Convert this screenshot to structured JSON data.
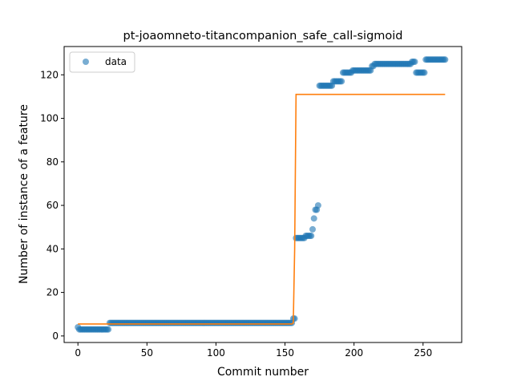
{
  "chart_data": {
    "type": "scatter",
    "title": "pt-joaomneto-titancompanion_safe_call-sigmoid",
    "xlabel": "Commit number",
    "ylabel": "Number of instance of a feature",
    "xlim": [
      -10,
      278
    ],
    "ylim": [
      -3,
      133
    ],
    "xticks": [
      0,
      50,
      100,
      150,
      200,
      250
    ],
    "yticks": [
      0,
      20,
      40,
      60,
      80,
      100,
      120
    ],
    "grid": false,
    "legend_position": "top-left",
    "legend": [
      "data"
    ],
    "colors": {
      "data": "#1f77b4",
      "fit": "#ff7f0e"
    },
    "series": [
      {
        "name": "data",
        "kind": "scatter",
        "segments": [
          {
            "x_from": 0,
            "x_to": 0,
            "y": 4
          },
          {
            "x_from": 1,
            "x_to": 22,
            "y": 3
          },
          {
            "x_from": 23,
            "x_to": 155,
            "y": 6
          },
          {
            "x_from": 156,
            "x_to": 157,
            "y": 8
          },
          {
            "x_from": 158,
            "x_to": 164,
            "y": 45
          },
          {
            "x_from": 165,
            "x_to": 169,
            "y": 46
          },
          {
            "x_from": 170,
            "x_to": 170,
            "y": 49
          },
          {
            "x_from": 171,
            "x_to": 171,
            "y": 54
          },
          {
            "x_from": 172,
            "x_to": 173,
            "y": 58
          },
          {
            "x_from": 174,
            "x_to": 174,
            "y": 60
          },
          {
            "x_from": 175,
            "x_to": 184,
            "y": 115
          },
          {
            "x_from": 185,
            "x_to": 191,
            "y": 117
          },
          {
            "x_from": 192,
            "x_to": 198,
            "y": 121
          },
          {
            "x_from": 199,
            "x_to": 212,
            "y": 122
          },
          {
            "x_from": 213,
            "x_to": 214,
            "y": 124
          },
          {
            "x_from": 215,
            "x_to": 241,
            "y": 125
          },
          {
            "x_from": 242,
            "x_to": 244,
            "y": 126
          },
          {
            "x_from": 245,
            "x_to": 251,
            "y": 121
          },
          {
            "x_from": 252,
            "x_to": 266,
            "y": 127
          }
        ]
      },
      {
        "name": "",
        "kind": "line",
        "points": [
          [
            0,
            5.5
          ],
          [
            155,
            5.5
          ],
          [
            156,
            6
          ],
          [
            157,
            40
          ],
          [
            158,
            111
          ],
          [
            266,
            111
          ]
        ]
      }
    ]
  }
}
